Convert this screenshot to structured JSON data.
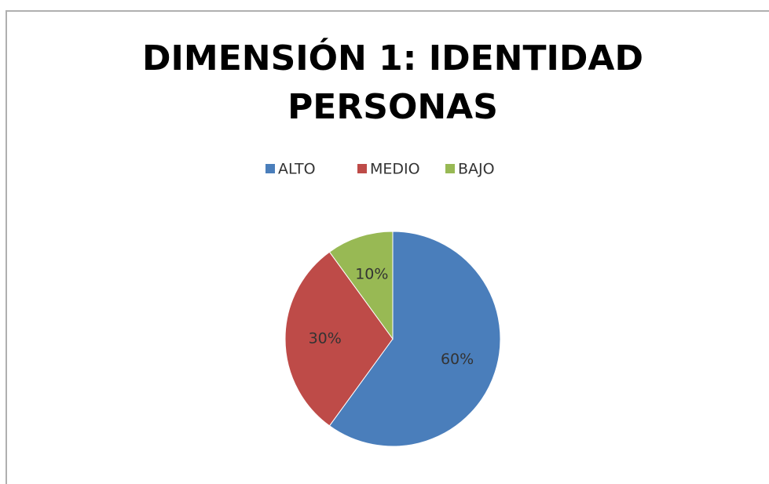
{
  "chart_data": {
    "type": "pie",
    "title": "DIMENSIÓN 1: IDENTIDAD PERSONAS",
    "categories": [
      "ALTO",
      "MEDIO",
      "BAJO"
    ],
    "values": [
      60,
      30,
      10
    ],
    "value_labels": [
      "60%",
      "30%",
      "10%"
    ],
    "colors": [
      "#4a7ebb",
      "#be4b48",
      "#98b954"
    ]
  }
}
